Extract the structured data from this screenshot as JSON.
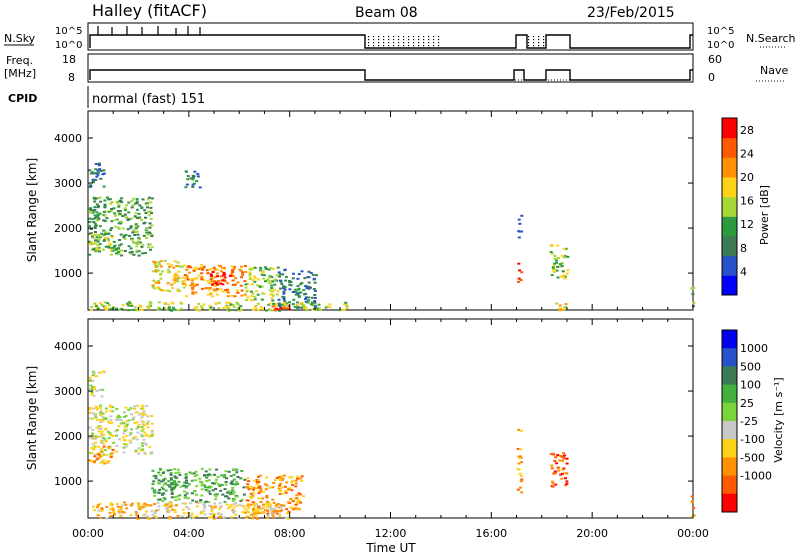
{
  "header": {
    "station": "Halley (fitACF)",
    "beam": "Beam 08",
    "date": "23/Feb/2015"
  },
  "sky_panel": {
    "left_label": "N.Sky",
    "left_ticks": [
      "10^5",
      "10^0"
    ],
    "right_label": "N.Search",
    "right_ticks": [
      "10^5",
      "10^0"
    ]
  },
  "freq_panel": {
    "left_label_1": "Freq.",
    "left_label_2": "[MHz]",
    "left_ticks": [
      "18",
      "8"
    ],
    "right_label": "Nave",
    "right_ticks": [
      "60",
      "0"
    ]
  },
  "cpid": {
    "label": "CPID",
    "value": "normal (fast) 151"
  },
  "x_axis": {
    "ticks": [
      "00:00",
      "04:00",
      "08:00",
      "12:00",
      "16:00",
      "20:00",
      "00:00"
    ],
    "label": "Time UT"
  },
  "colors": {
    "power": [
      "#0000ff",
      "#2a52c8",
      "#3a7a55",
      "#2e9a40",
      "#a8d838",
      "#ffd21a",
      "#ff9000",
      "#ff5a00",
      "#ff0000"
    ],
    "velocity": [
      "#0000ee",
      "#2a52c8",
      "#3a7a55",
      "#44b040",
      "#7ad43c",
      "#c8c8c8",
      "#ffd21a",
      "#ff9000",
      "#ff5a00",
      "#ff0000"
    ]
  },
  "chart_data": [
    {
      "type": "heatmap",
      "name": "power",
      "ylabel": "Slant Range [km]",
      "xlabel": "",
      "xlim": [
        0,
        24
      ],
      "ylim": [
        180,
        4600
      ],
      "y_ticks": [
        "1000",
        "2000",
        "3000",
        "4000"
      ],
      "colorbar": {
        "label": "Power [dB]",
        "ticks": [
          "4",
          "8",
          "12",
          "16",
          "20",
          "24",
          "28"
        ],
        "range": [
          0,
          30
        ]
      },
      "blobs": [
        {
          "t0": 0.0,
          "t1": 0.6,
          "r0": 2900,
          "r1": 3500,
          "v": 6
        },
        {
          "t0": 0.0,
          "t1": 2.5,
          "r0": 1400,
          "r1": 2700,
          "v": 10
        },
        {
          "t0": 0.0,
          "t1": 1.0,
          "r0": 1500,
          "r1": 1900,
          "v": 14
        },
        {
          "t0": 2.5,
          "t1": 3.8,
          "r0": 600,
          "r1": 1300,
          "v": 18
        },
        {
          "t0": 3.8,
          "t1": 6.2,
          "r0": 500,
          "r1": 1200,
          "v": 20
        },
        {
          "t0": 4.8,
          "t1": 5.6,
          "r0": 750,
          "r1": 1050,
          "v": 26
        },
        {
          "t0": 6.2,
          "t1": 7.5,
          "r0": 400,
          "r1": 1150,
          "v": 12
        },
        {
          "t0": 7.5,
          "t1": 9.0,
          "r0": 250,
          "r1": 1100,
          "v": 8
        },
        {
          "t0": 0.0,
          "t1": 10.5,
          "r0": 180,
          "r1": 380,
          "v": 14
        },
        {
          "t0": 7.2,
          "t1": 8.1,
          "r0": 180,
          "r1": 300,
          "v": 28
        },
        {
          "t0": 3.8,
          "t1": 4.4,
          "r0": 2900,
          "r1": 3300,
          "v": 6
        },
        {
          "t0": 17.0,
          "t1": 17.15,
          "r0": 1700,
          "r1": 2300,
          "v": 8
        },
        {
          "t0": 17.0,
          "t1": 17.15,
          "r0": 800,
          "r1": 1300,
          "v": 28
        },
        {
          "t0": 18.3,
          "t1": 19.0,
          "r0": 900,
          "r1": 1650,
          "v": 12
        },
        {
          "t0": 18.3,
          "t1": 19.0,
          "r0": 180,
          "r1": 350,
          "v": 18
        },
        {
          "t0": 23.9,
          "t1": 24.0,
          "r0": 200,
          "r1": 800,
          "v": 10
        }
      ]
    },
    {
      "type": "heatmap",
      "name": "velocity",
      "ylabel": "Slant Range [km]",
      "xlabel": "Time UT",
      "xlim": [
        0,
        24
      ],
      "ylim": [
        180,
        4600
      ],
      "y_ticks": [
        "1000",
        "2000",
        "3000",
        "4000"
      ],
      "colorbar": {
        "label": "Velocity [m s⁻¹]",
        "ticks": [
          "1000",
          "500",
          "100",
          "25",
          "-25",
          "-100",
          "-500",
          "-1000"
        ]
      },
      "blobs": [
        {
          "t0": 0.0,
          "t1": 0.6,
          "r0": 2900,
          "r1": 3500,
          "v": 5
        },
        {
          "t0": 0.0,
          "t1": 2.5,
          "r0": 1600,
          "r1": 2700,
          "v": 5
        },
        {
          "t0": 0.0,
          "t1": 1.0,
          "r0": 1400,
          "r1": 1800,
          "v": 7
        },
        {
          "t0": 2.5,
          "t1": 6.2,
          "r0": 550,
          "r1": 1300,
          "v": 3
        },
        {
          "t0": 6.2,
          "t1": 8.5,
          "r0": 300,
          "r1": 1150,
          "v": 7
        },
        {
          "t0": 0.0,
          "t1": 8.0,
          "r0": 180,
          "r1": 550,
          "v": 6
        },
        {
          "t0": 17.0,
          "t1": 17.15,
          "r0": 700,
          "r1": 2300,
          "v": 7
        },
        {
          "t0": 18.3,
          "t1": 19.0,
          "r0": 900,
          "r1": 1650,
          "v": 8
        },
        {
          "t0": 23.9,
          "t1": 24.0,
          "r0": 200,
          "r1": 700,
          "v": 7
        }
      ]
    }
  ]
}
